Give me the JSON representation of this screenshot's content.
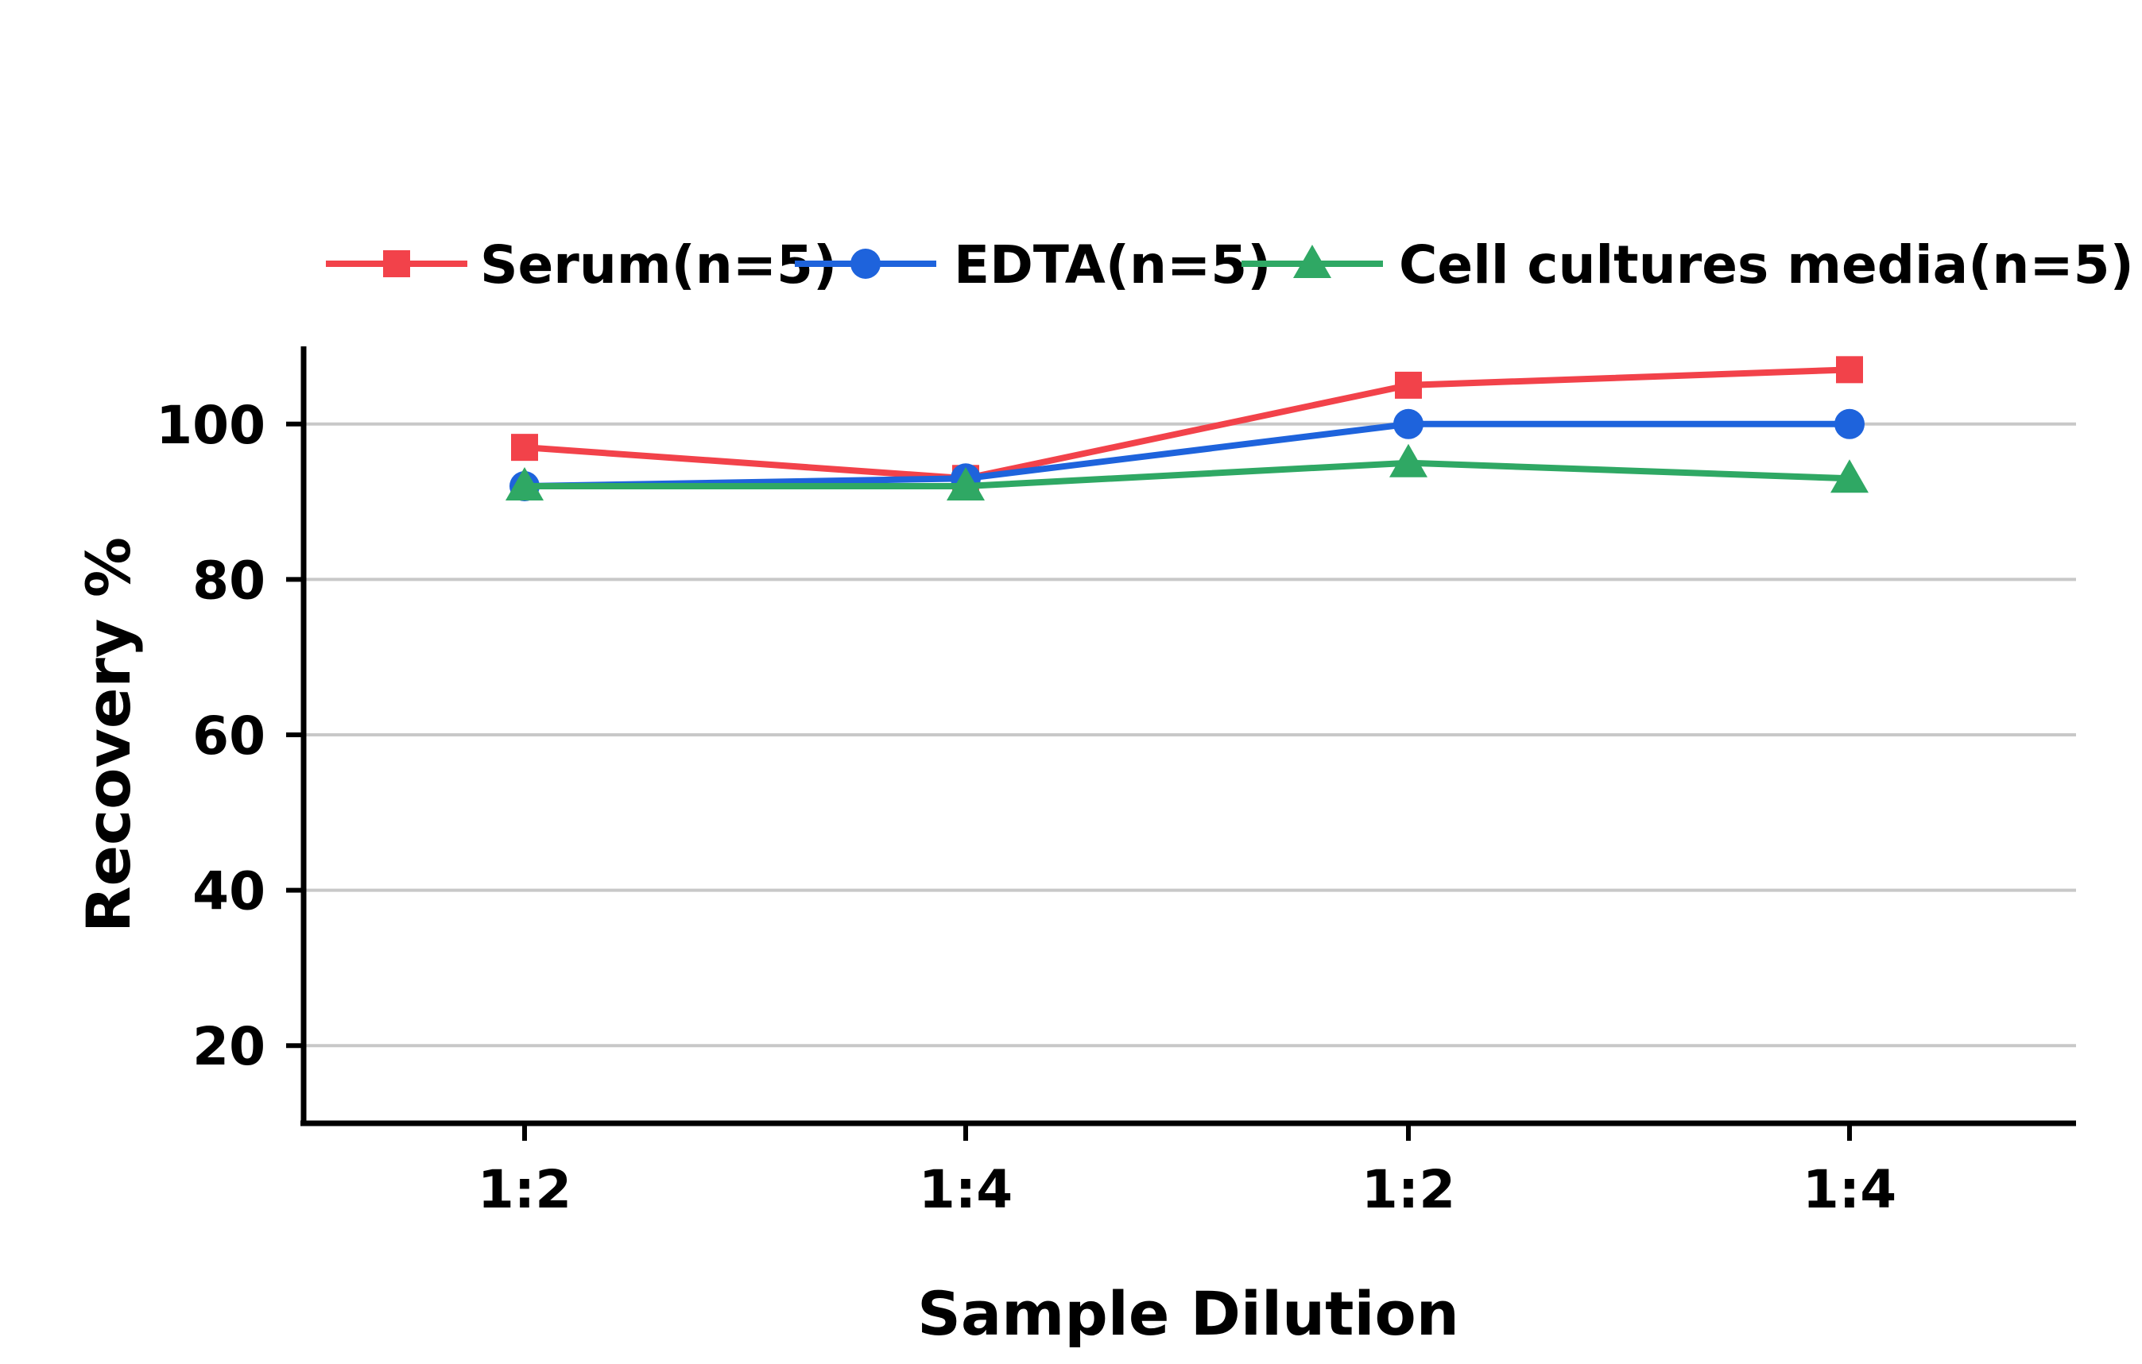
{
  "chart_data": {
    "type": "line",
    "categories": [
      "1:2",
      "1:4",
      "1:2",
      "1:4"
    ],
    "xlabel": "Sample Dilution",
    "ylabel": "Recovery %",
    "ylim": [
      10,
      110
    ],
    "yticks": [
      20,
      40,
      60,
      80,
      100
    ],
    "grid": true,
    "legend_position": "top",
    "series": [
      {
        "name": "Serum(n=5)",
        "color": "#f2424a",
        "marker": "square",
        "values": [
          97,
          93,
          105,
          107
        ]
      },
      {
        "name": "EDTA(n=5)",
        "color": "#1e63dc",
        "marker": "circle",
        "values": [
          92,
          93,
          100,
          100
        ]
      },
      {
        "name": "Cell cultures media(n=5)",
        "color": "#2fa864",
        "marker": "triangle",
        "values": [
          92,
          92,
          95,
          93
        ]
      }
    ]
  }
}
